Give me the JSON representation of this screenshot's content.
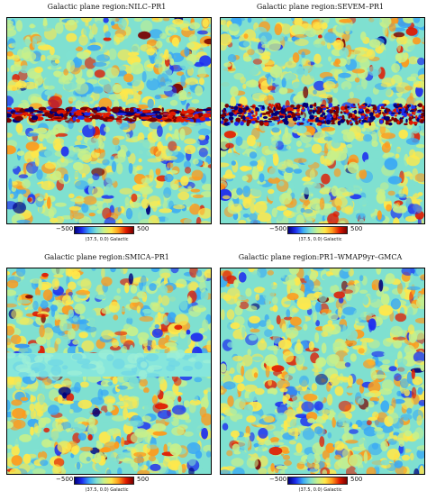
{
  "panels": [
    {
      "title": "Galactic plane region:NILC–PR1",
      "band": "strong"
    },
    {
      "title": "Galactic plane region:SEVEM–PR1",
      "band": "noisy"
    },
    {
      "title": "Galactic plane region:SMICA–PR1",
      "band": "inpainted"
    },
    {
      "title": "Galactic plane region:PR1–WMAP9yr–GMCA",
      "band": "none"
    }
  ],
  "colorbar": {
    "min_label": "−500",
    "max_label": "500",
    "coord_label": "(37.5, 0.0) Galactic"
  },
  "colors": {
    "min": "#00007a",
    "mid": "#7fe0d0",
    "max": "#7a0000"
  }
}
